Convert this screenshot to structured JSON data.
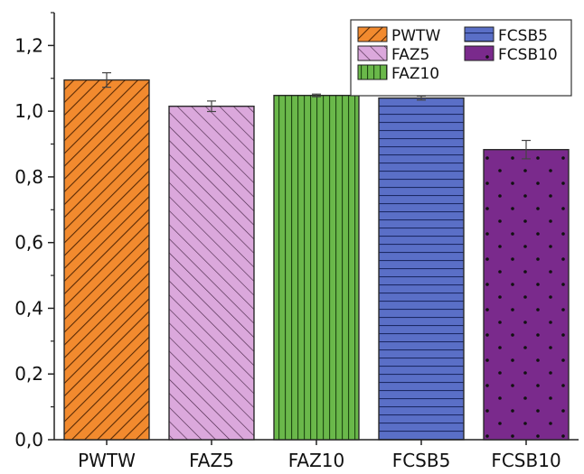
{
  "chart_data": {
    "type": "bar",
    "title": "",
    "xlabel": "",
    "ylabel": "",
    "categories": [
      "PWTW",
      "FAZ5",
      "FAZ10",
      "FCSB5",
      "FCSB10"
    ],
    "values": [
      1.095,
      1.015,
      1.048,
      1.04,
      0.883
    ],
    "errors": [
      0.022,
      0.016,
      0.004,
      0.006,
      0.028
    ],
    "ylim": [
      0,
      1.3
    ],
    "yticks": [
      0,
      0.2,
      0.4,
      0.6,
      0.8,
      1.0,
      1.2
    ],
    "ytick_labels": [
      "0,0",
      "0,2",
      "0,4",
      "0,6",
      "0,8",
      "1,0",
      "1,2"
    ],
    "grid": false,
    "legend": {
      "position": "top-right",
      "entries": [
        "PWTW",
        "FAZ5",
        "FAZ10",
        "FCSB5",
        "FCSB10"
      ]
    },
    "colors": [
      "#f28a2e",
      "#d9a6d9",
      "#6ab84a",
      "#5a6fc7",
      "#7a2a8c"
    ],
    "patterns": [
      "diagonal-dense",
      "diagonal-sparse",
      "vertical",
      "horizontal",
      "dots"
    ]
  }
}
